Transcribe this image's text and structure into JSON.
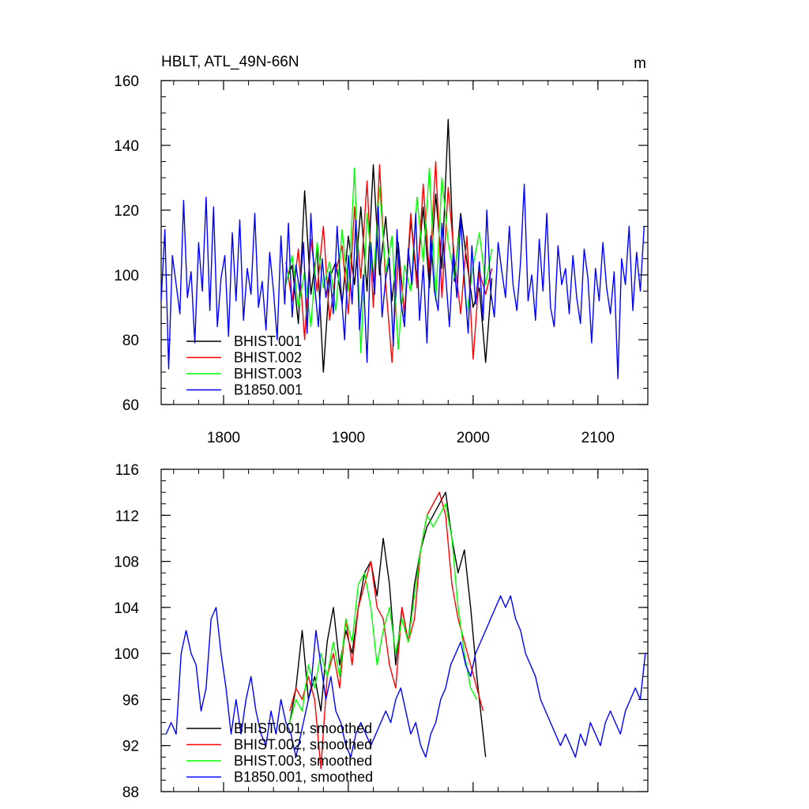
{
  "figure": {
    "title": "HBLT, ATL_49N-66N",
    "units": "m"
  },
  "chart_data": [
    {
      "type": "line",
      "xlim": [
        1750,
        2140
      ],
      "ylim": [
        60,
        160
      ],
      "x_ticks": [
        1800,
        1900,
        2000,
        2100
      ],
      "y_ticks": [
        60,
        80,
        100,
        120,
        140,
        160
      ],
      "x_tick_labels": [
        "1800",
        "1900",
        "2000",
        "2100"
      ],
      "y_tick_labels": [
        "60",
        "80",
        "100",
        "120",
        "140",
        "160"
      ],
      "grid": false,
      "legend_position": "bottom-left",
      "series": [
        {
          "name": "BHIST.001",
          "color": "#000000",
          "x": [
            1850,
            1855,
            1860,
            1865,
            1870,
            1875,
            1880,
            1885,
            1890,
            1895,
            1900,
            1905,
            1910,
            1915,
            1920,
            1925,
            1930,
            1935,
            1940,
            1945,
            1950,
            1955,
            1960,
            1965,
            1970,
            1975,
            1980,
            1985,
            1990,
            1995,
            2000,
            2005,
            2010,
            2015
          ],
          "values": [
            98,
            103,
            85,
            126,
            94,
            108,
            70,
            99,
            104,
            91,
            112,
            97,
            121,
            95,
            134,
            100,
            118,
            92,
            110,
            87,
            117,
            99,
            121,
            96,
            125,
            102,
            148,
            98,
            119,
            104,
            90,
            96,
            73,
            99
          ]
        },
        {
          "name": "BHIST.002",
          "color": "#ff0000",
          "x": [
            1850,
            1855,
            1860,
            1865,
            1870,
            1875,
            1880,
            1885,
            1890,
            1895,
            1900,
            1905,
            1910,
            1915,
            1920,
            1925,
            1930,
            1935,
            1940,
            1945,
            1950,
            1955,
            1960,
            1965,
            1970,
            1975,
            1980,
            1985,
            1990,
            1995,
            2000,
            2005,
            2010,
            2015
          ],
          "values": [
            104,
            92,
            108,
            80,
            111,
            95,
            115,
            86,
            101,
            109,
            88,
            121,
            99,
            129,
            90,
            134,
            97,
            73,
            106,
            88,
            119,
            96,
            128,
            100,
            135,
            93,
            127,
            105,
            88,
            112,
            74,
            101,
            94,
            102
          ]
        },
        {
          "name": "BHIST.003",
          "color": "#00ff00",
          "x": [
            1850,
            1855,
            1860,
            1865,
            1870,
            1875,
            1880,
            1885,
            1890,
            1895,
            1900,
            1905,
            1910,
            1915,
            1920,
            1925,
            1930,
            1935,
            1940,
            1945,
            1950,
            1955,
            1960,
            1965,
            1970,
            1975,
            1980,
            1985,
            1990,
            1995,
            2000,
            2005,
            2010,
            2015
          ],
          "values": [
            97,
            106,
            90,
            101,
            84,
            110,
            96,
            104,
            89,
            114,
            95,
            133,
            76,
            119,
            98,
            127,
            101,
            112,
            77,
            103,
            95,
            124,
            104,
            133,
            92,
            130,
            110,
            99,
            116,
            88,
            103,
            113,
            97,
            108
          ]
        },
        {
          "name": "B1850.001",
          "color": "#0000ff",
          "x": [
            1750,
            1753,
            1756,
            1759,
            1762,
            1765,
            1768,
            1771,
            1774,
            1777,
            1780,
            1783,
            1786,
            1789,
            1792,
            1795,
            1798,
            1801,
            1804,
            1807,
            1810,
            1813,
            1816,
            1819,
            1822,
            1825,
            1828,
            1831,
            1834,
            1837,
            1840,
            1843,
            1846,
            1849,
            1852,
            1855,
            1858,
            1861,
            1864,
            1867,
            1870,
            1873,
            1876,
            1879,
            1882,
            1885,
            1888,
            1891,
            1894,
            1897,
            1900,
            1903,
            1906,
            1909,
            1912,
            1915,
            1918,
            1921,
            1924,
            1927,
            1930,
            1933,
            1936,
            1939,
            1942,
            1945,
            1948,
            1951,
            1954,
            1957,
            1960,
            1963,
            1966,
            1969,
            1972,
            1975,
            1978,
            1981,
            1984,
            1987,
            1990,
            1993,
            1996,
            1999,
            2002,
            2005,
            2008,
            2011,
            2014,
            2017,
            2020,
            2023,
            2026,
            2029,
            2032,
            2035,
            2038,
            2041,
            2044,
            2047,
            2050,
            2053,
            2056,
            2059,
            2062,
            2065,
            2068,
            2071,
            2074,
            2077,
            2080,
            2083,
            2086,
            2089,
            2092,
            2095,
            2098,
            2101,
            2104,
            2107,
            2110,
            2113,
            2116,
            2119,
            2122,
            2125,
            2128,
            2131,
            2134,
            2137
          ],
          "values": [
            92,
            114,
            71,
            106,
            97,
            88,
            123,
            93,
            101,
            79,
            110,
            95,
            124,
            89,
            121,
            84,
            99,
            106,
            81,
            113,
            92,
            117,
            86,
            102,
            94,
            119,
            90,
            98,
            83,
            107,
            95,
            80,
            112,
            91,
            116,
            87,
            103,
            95,
            110,
            82,
            119,
            97,
            84,
            105,
            93,
            101,
            88,
            115,
            96,
            80,
            106,
            91,
            117,
            83,
            100,
            73,
            110,
            94,
            121,
            87,
            99,
            105,
            78,
            114,
            92,
            84,
            108,
            97,
            119,
            86,
            103,
            79,
            112,
            95,
            89,
            116,
            100,
            84,
            107,
            93,
            118,
            98,
            82,
            109,
            91,
            104,
            86,
            120,
            95,
            87,
            110,
            101,
            93,
            115,
            97,
            89,
            104,
            128,
            92,
            100,
            86,
            111,
            95,
            119,
            90,
            84,
            109,
            97,
            102,
            88,
            106,
            93,
            85,
            108,
            99,
            79,
            102,
            92,
            110,
            96,
            88,
            101,
            68,
            105,
            97,
            115,
            89,
            107,
            95,
            115
          ]
        }
      ]
    },
    {
      "type": "line",
      "xlim": [
        1750,
        2140
      ],
      "ylim": [
        88,
        116
      ],
      "x_ticks": [
        1800,
        1900,
        2000,
        2100
      ],
      "y_ticks": [
        88,
        92,
        96,
        100,
        104,
        108,
        112,
        116
      ],
      "x_tick_labels": [],
      "y_tick_labels": [
        "88",
        "92",
        "96",
        "100",
        "104",
        "108",
        "112",
        "116"
      ],
      "grid": false,
      "legend_position": "bottom-left",
      "series": [
        {
          "name": "BHIST.001, smoothed",
          "color": "#000000",
          "x": [
            1853,
            1858,
            1863,
            1868,
            1873,
            1878,
            1883,
            1888,
            1893,
            1898,
            1903,
            1908,
            1913,
            1918,
            1923,
            1928,
            1933,
            1938,
            1943,
            1948,
            1953,
            1958,
            1963,
            1968,
            1973,
            1978,
            1983,
            1988,
            1993,
            1998,
            2003,
            2008,
            2010
          ],
          "values": [
            94,
            97,
            102,
            96,
            98,
            95,
            101,
            104,
            99,
            102,
            100,
            104,
            107,
            108,
            105,
            110,
            106,
            99,
            104,
            101,
            106,
            109,
            111,
            112,
            113,
            114,
            110,
            107,
            109,
            104,
            98,
            93,
            91
          ]
        },
        {
          "name": "BHIST.002, smoothed",
          "color": "#ff0000",
          "x": [
            1853,
            1858,
            1863,
            1868,
            1873,
            1878,
            1883,
            1888,
            1893,
            1898,
            1903,
            1908,
            1913,
            1918,
            1923,
            1928,
            1933,
            1938,
            1943,
            1948,
            1953,
            1958,
            1963,
            1968,
            1973,
            1978,
            1983,
            1988,
            1993,
            1998,
            2003,
            2008
          ],
          "values": [
            95,
            97,
            96,
            98,
            96,
            90,
            98,
            100,
            97,
            103,
            99,
            104,
            106,
            108,
            104,
            103,
            99,
            97,
            104,
            101,
            103,
            109,
            112,
            113,
            114,
            112,
            106,
            103,
            101,
            99,
            97,
            95
          ]
        },
        {
          "name": "BHIST.003, smoothed",
          "color": "#00ff00",
          "x": [
            1853,
            1858,
            1863,
            1868,
            1873,
            1878,
            1883,
            1888,
            1893,
            1898,
            1903,
            1908,
            1913,
            1918,
            1923,
            1928,
            1933,
            1938,
            1943,
            1948,
            1953,
            1958,
            1963,
            1968,
            1973,
            1978,
            1983,
            1988,
            1993,
            1998,
            2003
          ],
          "values": [
            94,
            96,
            95,
            99,
            97,
            100,
            98,
            101,
            98,
            103,
            101,
            106,
            107,
            104,
            99,
            102,
            104,
            100,
            103,
            101,
            105,
            109,
            112,
            111,
            112,
            113,
            110,
            104,
            100,
            97,
            96
          ]
        },
        {
          "name": "B1850.001, smoothed",
          "color": "#0000ff",
          "x": [
            1754,
            1758,
            1762,
            1766,
            1770,
            1774,
            1778,
            1782,
            1786,
            1790,
            1794,
            1798,
            1802,
            1806,
            1810,
            1814,
            1818,
            1822,
            1826,
            1830,
            1834,
            1838,
            1842,
            1846,
            1850,
            1854,
            1858,
            1862,
            1866,
            1870,
            1874,
            1878,
            1882,
            1886,
            1890,
            1894,
            1898,
            1902,
            1906,
            1910,
            1914,
            1918,
            1922,
            1926,
            1930,
            1934,
            1938,
            1942,
            1946,
            1950,
            1954,
            1958,
            1962,
            1966,
            1970,
            1974,
            1978,
            1982,
            1986,
            1990,
            1994,
            1998,
            2002,
            2006,
            2010,
            2014,
            2018,
            2022,
            2026,
            2030,
            2034,
            2038,
            2042,
            2046,
            2050,
            2054,
            2058,
            2062,
            2066,
            2070,
            2074,
            2078,
            2082,
            2086,
            2090,
            2094,
            2098,
            2102,
            2106,
            2110,
            2114,
            2118,
            2122,
            2126,
            2130,
            2134,
            2138
          ],
          "values": [
            93,
            94,
            93,
            100,
            102,
            100,
            99,
            95,
            97,
            103,
            104,
            100,
            97,
            93,
            96,
            93,
            96,
            98,
            95,
            93,
            92,
            95,
            93,
            96,
            94,
            93,
            91,
            93,
            95,
            97,
            102,
            99,
            96,
            98,
            95,
            94,
            92,
            91,
            93,
            94,
            93,
            92,
            93,
            94,
            95,
            94,
            96,
            97,
            95,
            93,
            94,
            92,
            91,
            93,
            94,
            96,
            97,
            99,
            100,
            101,
            99,
            98,
            100,
            101,
            102,
            103,
            104,
            105,
            104,
            105,
            103,
            102,
            100,
            99,
            98,
            96,
            95,
            94,
            93,
            92,
            93,
            92,
            91,
            93,
            92,
            94,
            93,
            92,
            94,
            95,
            94,
            93,
            95,
            96,
            97,
            96,
            100
          ]
        }
      ]
    }
  ]
}
